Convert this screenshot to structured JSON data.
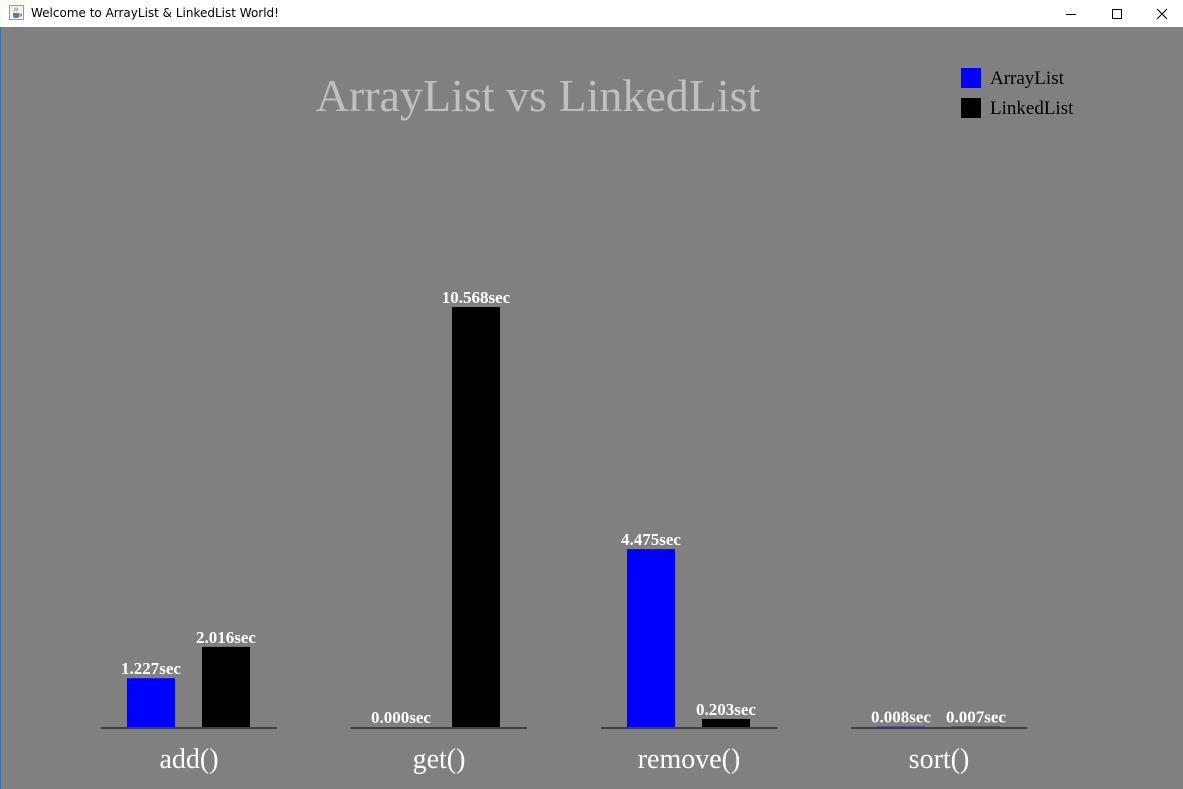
{
  "window": {
    "title": "Welcome to ArrayList & LinkedList World!",
    "icon": "java-cup-icon",
    "controls": {
      "minimize": "minimize-icon",
      "maximize": "maximize-icon",
      "close": "close-icon"
    }
  },
  "chart_data": {
    "type": "bar",
    "title": "ArrayList vs LinkedList",
    "xlabel": "",
    "ylabel": "",
    "categories": [
      "add()",
      "get()",
      "remove()",
      "sort()"
    ],
    "series": [
      {
        "name": "ArrayList",
        "color": "#0000ff",
        "values": [
          1.227,
          0.0,
          4.475,
          0.008
        ],
        "labels": [
          "1.227sec",
          "0.000sec",
          "4.475sec",
          "0.008sec"
        ]
      },
      {
        "name": "LinkedList",
        "color": "#000000",
        "values": [
          2.016,
          10.568,
          0.203,
          0.007
        ],
        "labels": [
          "2.016sec",
          "10.568sec",
          "0.203sec",
          "0.007sec"
        ]
      }
    ],
    "ylim": [
      0,
      10.568
    ],
    "grid": false,
    "legend": "top-right",
    "colors": {
      "background": "#808080",
      "title": "#c0c0c0",
      "value_label": "#ffffff",
      "category_label": "#ffffff",
      "baseline": "#000000"
    }
  }
}
